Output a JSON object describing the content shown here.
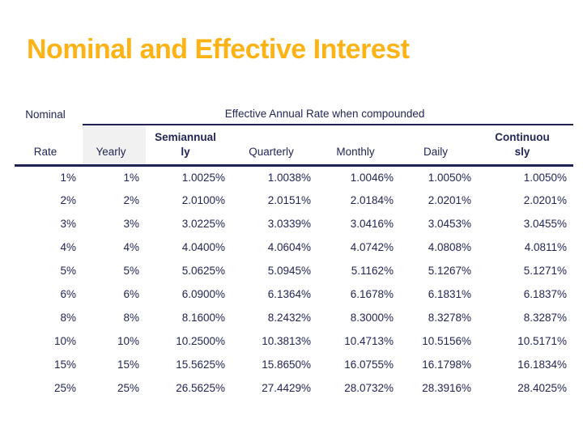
{
  "slide": {
    "title": "Nominal and Effective Interest",
    "colors": {
      "title": "#FCB316",
      "text": "#222655",
      "rule": "#1F2353",
      "header_shade": "#F1F1F1",
      "background": "#FFFFFF"
    }
  },
  "table": {
    "group_header": {
      "nominal": "Nominal",
      "effective": "Effective Annual Rate when compounded"
    },
    "columns": [
      {
        "label": "Rate",
        "bold": false
      },
      {
        "label": "Yearly",
        "bold": false
      },
      {
        "label": [
          "Semiannual",
          "ly"
        ],
        "bold": true
      },
      {
        "label": "Quarterly",
        "bold": false
      },
      {
        "label": "Monthly",
        "bold": false
      },
      {
        "label": "Daily",
        "bold": false
      },
      {
        "label": [
          "Continuou",
          "sly"
        ],
        "bold": true
      }
    ],
    "rows": [
      [
        "1%",
        "1%",
        "1.0025%",
        "1.0038%",
        "1.0046%",
        "1.0050%",
        "1.0050%"
      ],
      [
        "2%",
        "2%",
        "2.0100%",
        "2.0151%",
        "2.0184%",
        "2.0201%",
        "2.0201%"
      ],
      [
        "3%",
        "3%",
        "3.0225%",
        "3.0339%",
        "3.0416%",
        "3.0453%",
        "3.0455%"
      ],
      [
        "4%",
        "4%",
        "4.0400%",
        "4.0604%",
        "4.0742%",
        "4.0808%",
        "4.0811%"
      ],
      [
        "5%",
        "5%",
        "5.0625%",
        "5.0945%",
        "5.1162%",
        "5.1267%",
        "5.1271%"
      ],
      [
        "6%",
        "6%",
        "6.0900%",
        "6.1364%",
        "6.1678%",
        "6.1831%",
        "6.1837%"
      ],
      [
        "8%",
        "8%",
        "8.1600%",
        "8.2432%",
        "8.3000%",
        "8.3278%",
        "8.3287%"
      ],
      [
        "10%",
        "10%",
        "10.2500%",
        "10.3813%",
        "10.4713%",
        "10.5156%",
        "10.5171%"
      ],
      [
        "15%",
        "15%",
        "15.5625%",
        "15.8650%",
        "16.0755%",
        "16.1798%",
        "16.1834%"
      ],
      [
        "25%",
        "25%",
        "26.5625%",
        "27.4429%",
        "28.0732%",
        "28.3916%",
        "28.4025%"
      ]
    ]
  }
}
